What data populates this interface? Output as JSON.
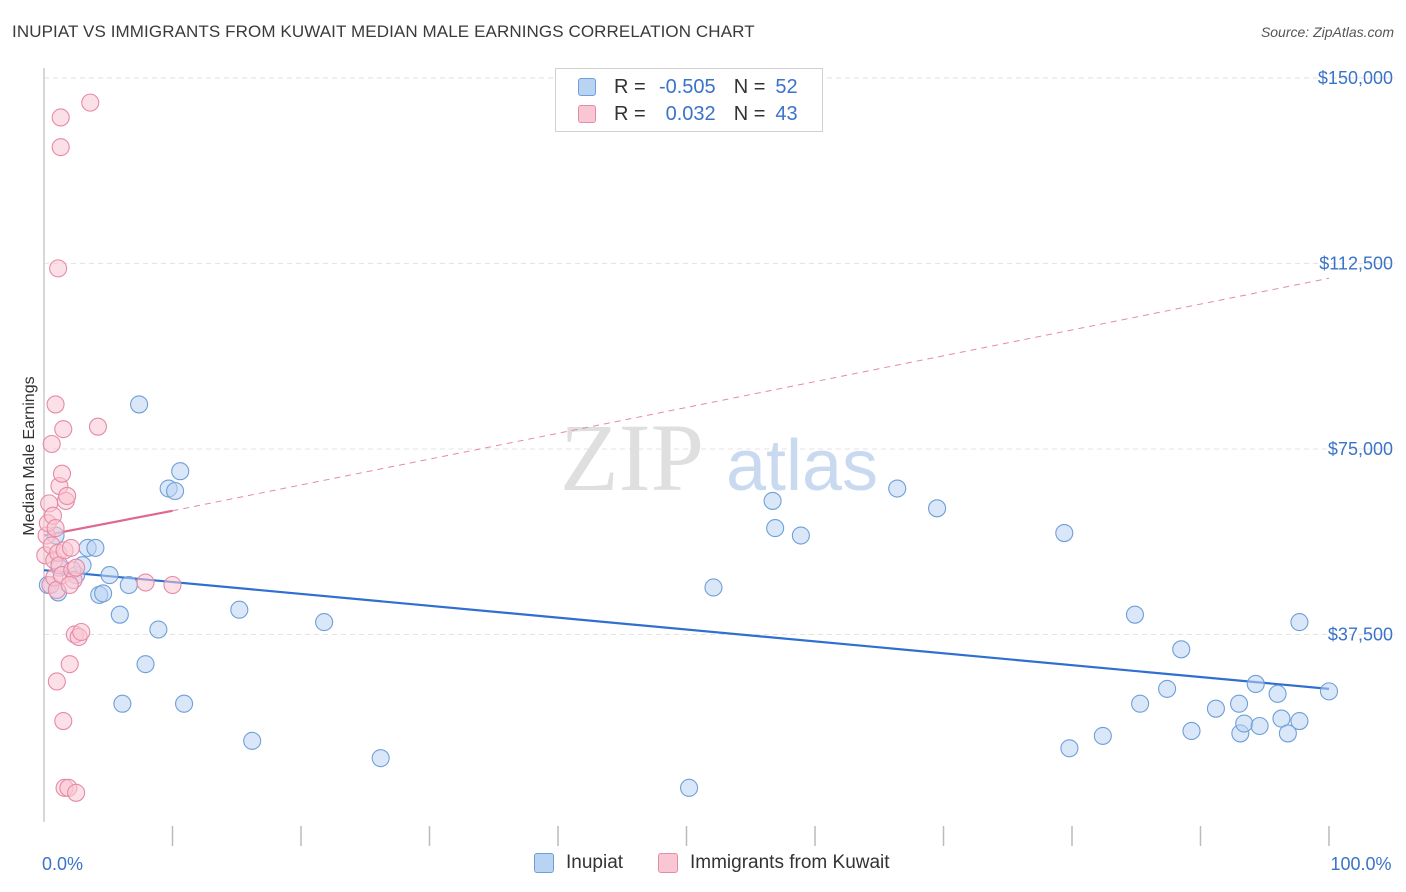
{
  "title": "INUPIAT VS IMMIGRANTS FROM KUWAIT MEDIAN MALE EARNINGS CORRELATION CHART",
  "source": "Source: ZipAtlas.com",
  "watermark": {
    "zip": "ZIP",
    "atlas": "atlas"
  },
  "stats": [
    {
      "r_label": "R =",
      "r_value": "-0.505",
      "n_label": "N =",
      "n_value": "52",
      "color": "#6f9fd8"
    },
    {
      "r_label": "R =",
      "r_value": "0.032",
      "n_label": "N =",
      "n_value": "43",
      "color": "#e68aa6"
    }
  ],
  "legend": [
    {
      "label": "Inupiat",
      "color": "#6f9fd8"
    },
    {
      "label": "Immigrants from Kuwait",
      "color": "#e68aa6"
    }
  ],
  "chart_data": {
    "type": "scatter",
    "title": "INUPIAT VS IMMIGRANTS FROM KUWAIT MEDIAN MALE EARNINGS CORRELATION CHART",
    "xlabel": "",
    "ylabel": "Median Male Earnings",
    "xlim": [
      0,
      105
    ],
    "ylim": [
      0,
      152000
    ],
    "x_tick_labels": [
      {
        "value": 0,
        "label": "0.0%"
      },
      {
        "value": 100,
        "label": "100.0%"
      }
    ],
    "y_ticks": [
      {
        "value": 37500,
        "label": "$37,500"
      },
      {
        "value": 75000,
        "label": "$75,000"
      },
      {
        "value": 112500,
        "label": "$112,500"
      },
      {
        "value": 150000,
        "label": "$150,000"
      }
    ],
    "grid": true,
    "series": [
      {
        "name": "Inupiat",
        "color": "#6f9fd8",
        "fill": "#b9d3f3",
        "points": [
          [
            0.3,
            47500
          ],
          [
            0.9,
            57500
          ],
          [
            1.2,
            51000
          ],
          [
            2.5,
            49500
          ],
          [
            3.0,
            51500
          ],
          [
            3.4,
            55000
          ],
          [
            4.0,
            55000
          ],
          [
            4.3,
            45500
          ],
          [
            4.6,
            45800
          ],
          [
            5.1,
            49500
          ],
          [
            5.9,
            41500
          ],
          [
            6.1,
            23500
          ],
          [
            6.6,
            47500
          ],
          [
            7.4,
            84000
          ],
          [
            7.9,
            31500
          ],
          [
            8.9,
            38500
          ],
          [
            9.7,
            67000
          ],
          [
            10.2,
            66500
          ],
          [
            10.6,
            70500
          ],
          [
            10.9,
            23500
          ],
          [
            15.2,
            42500
          ],
          [
            16.2,
            16000
          ],
          [
            21.8,
            40000
          ],
          [
            26.2,
            12500
          ],
          [
            50.2,
            6500
          ],
          [
            52.1,
            47000
          ],
          [
            56.7,
            64500
          ],
          [
            56.9,
            59000
          ],
          [
            58.9,
            57500
          ],
          [
            66.4,
            67000
          ],
          [
            69.5,
            63000
          ],
          [
            79.4,
            58000
          ],
          [
            79.8,
            14500
          ],
          [
            82.4,
            17000
          ],
          [
            84.9,
            41500
          ],
          [
            85.3,
            23500
          ],
          [
            87.4,
            26500
          ],
          [
            88.5,
            34500
          ],
          [
            89.3,
            18000
          ],
          [
            91.2,
            22500
          ],
          [
            93.0,
            23500
          ],
          [
            93.1,
            17500
          ],
          [
            93.4,
            19500
          ],
          [
            94.3,
            27500
          ],
          [
            94.6,
            19000
          ],
          [
            96.0,
            25500
          ],
          [
            96.3,
            20500
          ],
          [
            96.8,
            17500
          ],
          [
            97.7,
            20000
          ],
          [
            97.7,
            40000
          ],
          [
            100.0,
            26000
          ],
          [
            1.1,
            46000
          ]
        ],
        "trend": {
          "x0": 0,
          "y0": 50500,
          "x1": 100,
          "y1": 26500,
          "style": "solid"
        }
      },
      {
        "name": "Immigrants from Kuwait",
        "color": "#e68aa6",
        "fill": "#f9c6d4",
        "points": [
          [
            0.1,
            53500
          ],
          [
            0.2,
            57500
          ],
          [
            0.3,
            60000
          ],
          [
            0.4,
            64000
          ],
          [
            0.5,
            47500
          ],
          [
            0.6,
            55500
          ],
          [
            0.6,
            76000
          ],
          [
            0.7,
            61500
          ],
          [
            0.8,
            49000
          ],
          [
            0.8,
            52500
          ],
          [
            0.9,
            59000
          ],
          [
            0.9,
            84000
          ],
          [
            1.0,
            46500
          ],
          [
            1.0,
            28000
          ],
          [
            1.1,
            54000
          ],
          [
            1.1,
            111500
          ],
          [
            1.2,
            51500
          ],
          [
            1.2,
            67500
          ],
          [
            1.3,
            136000
          ],
          [
            1.3,
            142000
          ],
          [
            1.4,
            49500
          ],
          [
            1.4,
            70000
          ],
          [
            1.5,
            20000
          ],
          [
            1.5,
            79000
          ],
          [
            1.6,
            54500
          ],
          [
            1.6,
            6500
          ],
          [
            1.7,
            64500
          ],
          [
            1.8,
            65500
          ],
          [
            1.9,
            6500
          ],
          [
            2.0,
            31500
          ],
          [
            2.1,
            55000
          ],
          [
            2.2,
            50500
          ],
          [
            2.3,
            48500
          ],
          [
            2.4,
            37500
          ],
          [
            2.5,
            51000
          ],
          [
            2.5,
            5500
          ],
          [
            2.7,
            37000
          ],
          [
            2.9,
            38000
          ],
          [
            3.6,
            145000
          ],
          [
            4.2,
            79500
          ],
          [
            7.9,
            48000
          ],
          [
            10.0,
            47500
          ],
          [
            2.0,
            47500
          ]
        ],
        "trend": {
          "x0": 0,
          "y0": 57500,
          "x1": 10,
          "y1": 62500,
          "style": "solid",
          "extension": {
            "x1": 100,
            "y1": 109500,
            "style": "dashed"
          }
        }
      }
    ]
  }
}
